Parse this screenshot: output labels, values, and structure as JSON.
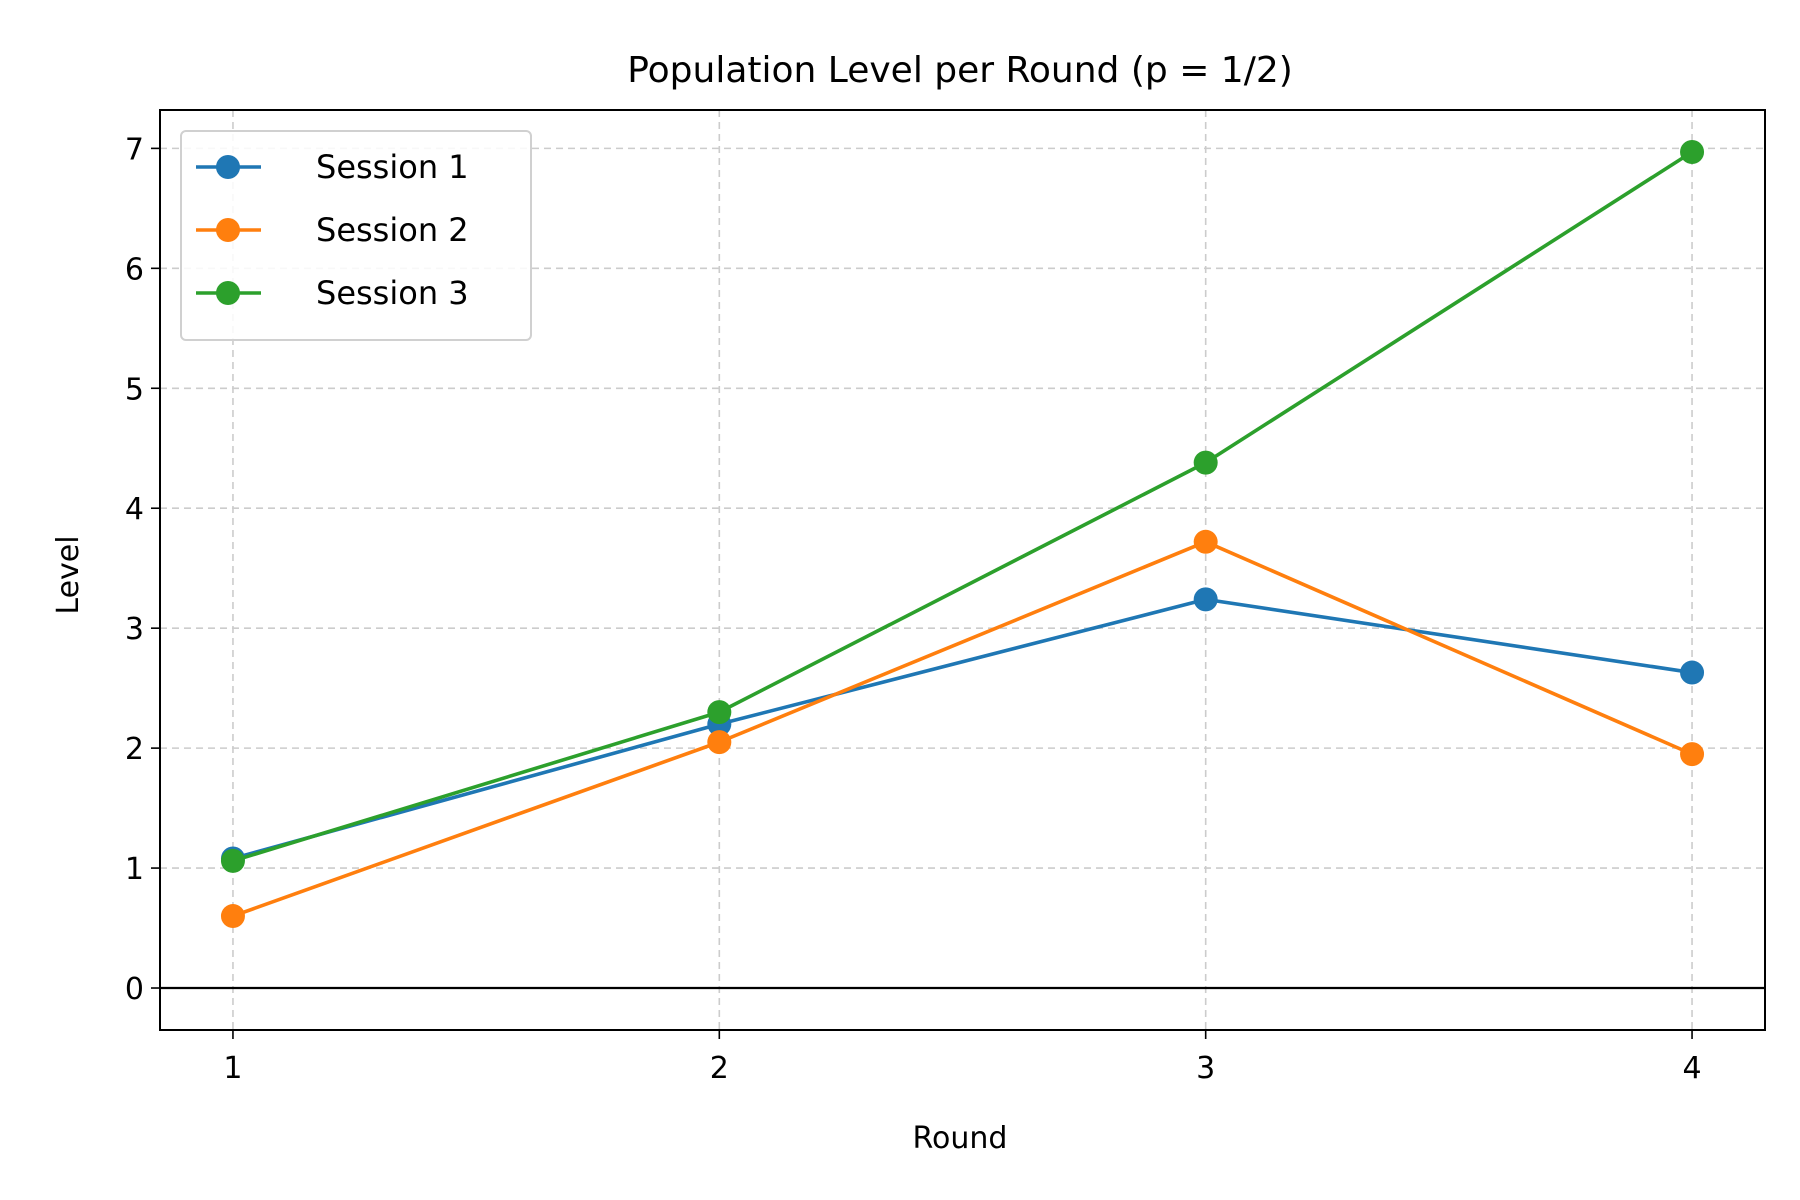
{
  "chart_data": {
    "type": "line",
    "title": "Population Level per Round (p = 1/2)",
    "xlabel": "Round",
    "ylabel": "Level",
    "x": [
      1,
      2,
      3,
      4
    ],
    "xticks": [
      "1",
      "2",
      "3",
      "4"
    ],
    "yticks": [
      "0",
      "1",
      "2",
      "3",
      "4",
      "5",
      "6",
      "7"
    ],
    "xlim": [
      0.85,
      4.15
    ],
    "ylim": [
      -0.35,
      7.32
    ],
    "grid": true,
    "zero_line": true,
    "legend_position": "top-left",
    "series": [
      {
        "name": "Session 1",
        "color": "#1f77b4",
        "values": [
          1.08,
          2.2,
          3.24,
          2.63
        ]
      },
      {
        "name": "Session 2",
        "color": "#ff7f0e",
        "values": [
          0.6,
          2.05,
          3.72,
          1.95
        ]
      },
      {
        "name": "Session 3",
        "color": "#2ca02c",
        "values": [
          1.06,
          2.3,
          4.38,
          6.97
        ]
      }
    ]
  }
}
